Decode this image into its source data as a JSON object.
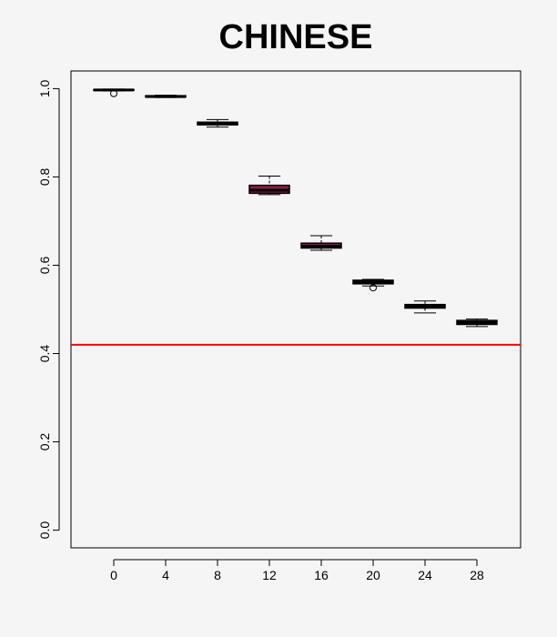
{
  "chart_data": {
    "type": "box",
    "title": "CHINESE",
    "xlabel": "",
    "ylabel": "",
    "categories": [
      "0",
      "4",
      "8",
      "12",
      "16",
      "20",
      "24",
      "28"
    ],
    "yticks": [
      "0.0",
      "0.2",
      "0.4",
      "0.6",
      "0.8",
      "1.0"
    ],
    "ylim": [
      -0.04,
      1.04
    ],
    "grid": false,
    "reference_line": {
      "y": 0.42,
      "color": "#ff0000"
    },
    "box_fill": "#8b1a4a",
    "boxes": [
      {
        "category": "0",
        "whisker_low": 0.995,
        "q1": 0.996,
        "median": 0.997,
        "q3": 0.998,
        "whisker_high": 0.999,
        "outliers": [
          0.989
        ]
      },
      {
        "category": "4",
        "whisker_low": 0.98,
        "q1": 0.981,
        "median": 0.982,
        "q3": 0.984,
        "whisker_high": 0.985,
        "outliers": []
      },
      {
        "category": "8",
        "whisker_low": 0.913,
        "q1": 0.918,
        "median": 0.921,
        "q3": 0.924,
        "whisker_high": 0.93,
        "outliers": []
      },
      {
        "category": "12",
        "whisker_low": 0.76,
        "q1": 0.763,
        "median": 0.77,
        "q3": 0.781,
        "whisker_high": 0.802,
        "outliers": []
      },
      {
        "category": "16",
        "whisker_low": 0.634,
        "q1": 0.639,
        "median": 0.643,
        "q3": 0.65,
        "whisker_high": 0.667,
        "outliers": []
      },
      {
        "category": "20",
        "whisker_low": 0.553,
        "q1": 0.558,
        "median": 0.562,
        "q3": 0.566,
        "whisker_high": 0.568,
        "outliers": [
          0.549
        ]
      },
      {
        "category": "24",
        "whisker_low": 0.492,
        "q1": 0.503,
        "median": 0.507,
        "q3": 0.511,
        "whisker_high": 0.519,
        "outliers": []
      },
      {
        "category": "28",
        "whisker_low": 0.461,
        "q1": 0.466,
        "median": 0.47,
        "q3": 0.475,
        "whisker_high": 0.478,
        "outliers": []
      }
    ]
  }
}
